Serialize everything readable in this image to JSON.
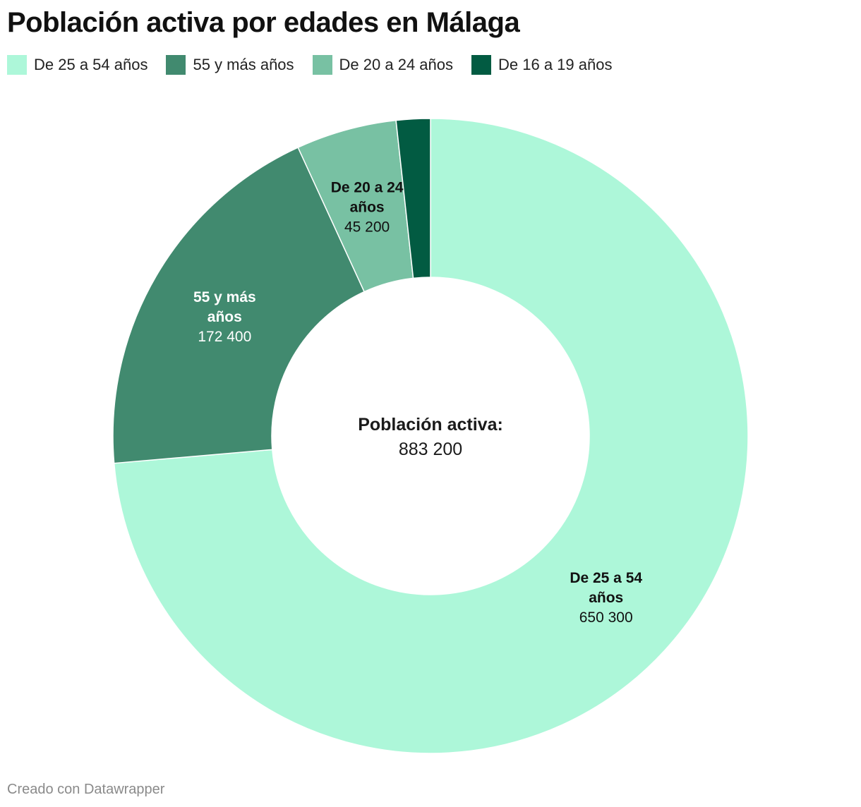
{
  "chart_data": {
    "type": "pie",
    "title": "Población activa por edades en Málaga",
    "center_label": "Población activa:",
    "center_value": "883 200",
    "slices": [
      {
        "label": "De 25 a 54 años",
        "label_lines": [
          "De 25 a 54",
          "años"
        ],
        "value": 650300,
        "value_text": "650 300",
        "color": "#adf7d9",
        "label_color": "#111111"
      },
      {
        "label": "55 y más años",
        "label_lines": [
          "55 y más",
          "años"
        ],
        "value": 172400,
        "value_text": "172 400",
        "color": "#418a6f",
        "label_color": "#ffffff"
      },
      {
        "label": "De 20 a 24 años",
        "label_lines": [
          "De 20 a 24",
          "años"
        ],
        "value": 45200,
        "value_text": "45 200",
        "color": "#78c1a3",
        "label_color": "#111111"
      },
      {
        "label": "De 16 a 19 años",
        "label_lines": [],
        "value": 15300,
        "value_text": "",
        "color": "#025b42",
        "label_color": "#ffffff"
      }
    ]
  },
  "footer": "Creado con Datawrapper"
}
